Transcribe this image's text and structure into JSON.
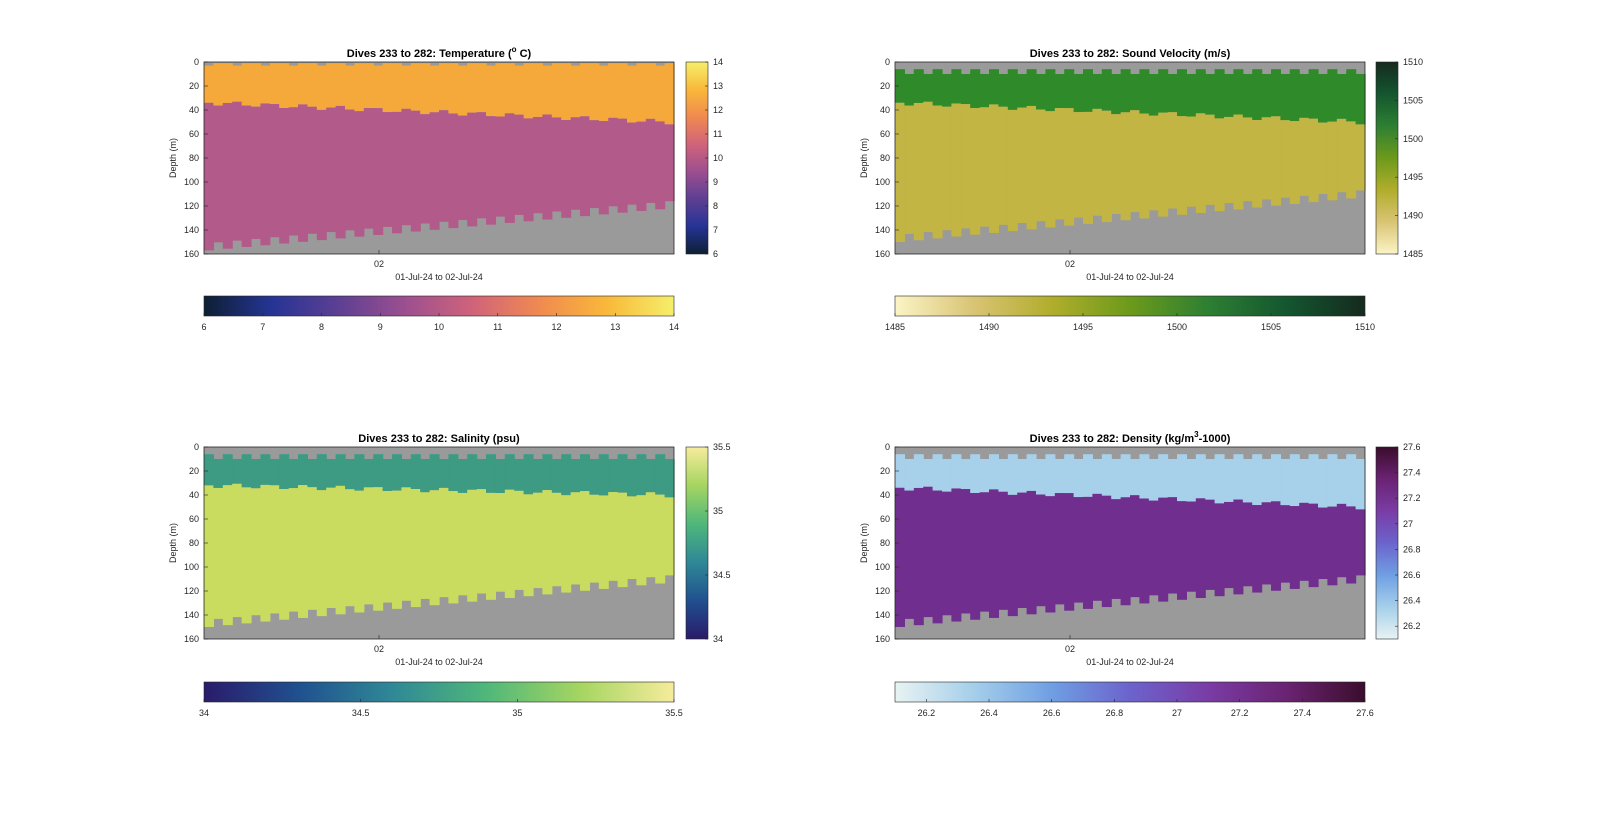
{
  "chart_data": [
    {
      "type": "heatmap",
      "title_main": "Dives 233 to 282: Temperature (",
      "title_sup": "o",
      "title_end": " C)",
      "ylabel": "Depth (m)",
      "xlabel": "01-Jul-24 to 02-Jul-24",
      "x_tick": "02",
      "y_ticks": [
        "0",
        "20",
        "40",
        "60",
        "80",
        "100",
        "120",
        "140",
        "160"
      ],
      "ylim": [
        0,
        160
      ],
      "y_reversed": true,
      "mixed_layer_depth_start": 34,
      "mixed_layer_depth_end": 50,
      "bottom_depth_start": 157,
      "bottom_depth_end": 122,
      "colors": {
        "surface": "#f6a93b",
        "deep": "#b25a8a",
        "missing": "#9a9a9a"
      },
      "colorbar_side_ticks": [
        "6",
        "7",
        "8",
        "9",
        "10",
        "11",
        "12",
        "13",
        "14"
      ],
      "colorbar_bottom_ticks": [
        "6",
        "7",
        "8",
        "9",
        "10",
        "11",
        "12",
        "13",
        "14"
      ],
      "colorbar_range": [
        6,
        14
      ],
      "colormap": [
        "#0d1f33",
        "#253494",
        "#5d3f93",
        "#9c4f90",
        "#d0637a",
        "#f08a50",
        "#f9b83a",
        "#f5ef6b"
      ]
    },
    {
      "type": "heatmap",
      "title_main": "Dives 233 to 282: Sound Velocity (m/s)",
      "title_sup": "",
      "title_end": "",
      "ylabel": "Depth (m)",
      "xlabel": "01-Jul-24 to 02-Jul-24",
      "x_tick": "02",
      "y_ticks": [
        "0",
        "20",
        "40",
        "60",
        "80",
        "100",
        "120",
        "140",
        "160"
      ],
      "ylim": [
        0,
        160
      ],
      "y_reversed": true,
      "mixed_layer_depth_start": 34,
      "mixed_layer_depth_end": 50,
      "bottom_depth_start": 150,
      "bottom_depth_end": 113,
      "colors": {
        "surface": "#2f8a2a",
        "deep": "#c2b544",
        "missing": "#9a9a9a"
      },
      "colorbar_side_ticks": [
        "1485",
        "1490",
        "1495",
        "1500",
        "1505",
        "1510"
      ],
      "colorbar_bottom_ticks": [
        "1485",
        "1490",
        "1495",
        "1500",
        "1505",
        "1510"
      ],
      "colorbar_range": [
        1485,
        1510
      ],
      "colormap": [
        "#fbf4c6",
        "#d9c474",
        "#b1ad2c",
        "#6c9a1b",
        "#2d7f33",
        "#14562f",
        "#152a1e"
      ]
    },
    {
      "type": "heatmap",
      "title_main": "Dives 233 to 282: Salinity (psu)",
      "title_sup": "",
      "title_end": "",
      "ylabel": "Depth (m)",
      "xlabel": "01-Jul-24 to 02-Jul-24",
      "x_tick": "02",
      "y_ticks": [
        "0",
        "20",
        "40",
        "60",
        "80",
        "100",
        "120",
        "140",
        "160"
      ],
      "ylim": [
        0,
        160
      ],
      "y_reversed": true,
      "mixed_layer_depth_start": 32,
      "mixed_layer_depth_end": 40,
      "bottom_depth_start": 150,
      "bottom_depth_end": 113,
      "colors": {
        "surface": "#3d9a83",
        "deep": "#c9dc60",
        "missing": "#9a9a9a"
      },
      "colorbar_side_ticks": [
        "34",
        "34.5",
        "35",
        "35.5"
      ],
      "colorbar_bottom_ticks": [
        "34",
        "34.5",
        "35",
        "35.5"
      ],
      "colorbar_range": [
        34,
        35.5
      ],
      "colormap": [
        "#2a1b6a",
        "#20508f",
        "#2f8896",
        "#4fb77a",
        "#a5d561",
        "#f6ec9c"
      ]
    },
    {
      "type": "heatmap",
      "title_main": "Dives 233 to 282: Density (kg/m",
      "title_sup": "3",
      "title_end": "-1000)",
      "ylabel": "Depth (m)",
      "xlabel": "01-Jul-24 to 02-Jul-24",
      "x_tick": "02",
      "y_ticks": [
        "0",
        "20",
        "40",
        "60",
        "80",
        "100",
        "120",
        "140",
        "160"
      ],
      "ylim": [
        0,
        160
      ],
      "y_reversed": true,
      "mixed_layer_depth_start": 34,
      "mixed_layer_depth_end": 50,
      "bottom_depth_start": 150,
      "bottom_depth_end": 113,
      "colors": {
        "surface": "#a7d0ea",
        "deep": "#702e8e",
        "missing": "#9a9a9a"
      },
      "colorbar_side_ticks": [
        "26.2",
        "26.4",
        "26.6",
        "26.8",
        "27",
        "27.2",
        "27.4",
        "27.6"
      ],
      "colorbar_bottom_ticks": [
        "26.2",
        "26.4",
        "26.6",
        "26.8",
        "27",
        "27.2",
        "27.4",
        "27.6"
      ],
      "colorbar_range": [
        26.1,
        27.6
      ],
      "colormap": [
        "#e8f3f3",
        "#a5cfea",
        "#6f9fe3",
        "#6c63cc",
        "#7a3ca5",
        "#6a2372",
        "#3a0d2c"
      ]
    }
  ]
}
